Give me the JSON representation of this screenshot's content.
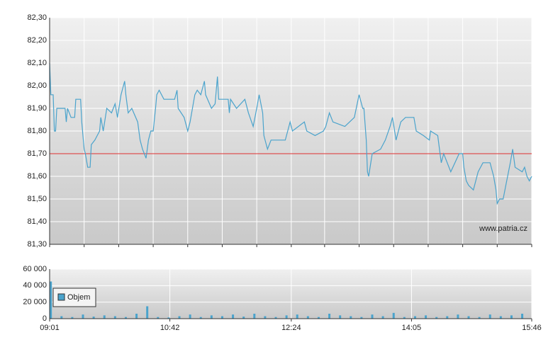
{
  "chart_data": [
    {
      "type": "line",
      "x": [
        541,
        542,
        544,
        545,
        546,
        547,
        554,
        555,
        556,
        559,
        562,
        563,
        567,
        568,
        570,
        571,
        573,
        575,
        576,
        579,
        583,
        584,
        586,
        589,
        593,
        596,
        598,
        601,
        604,
        605,
        607,
        610,
        615,
        617,
        619,
        622,
        624,
        626,
        628,
        630,
        631,
        633,
        637,
        642,
        646,
        648,
        649,
        654,
        657,
        659,
        663,
        665,
        668,
        671,
        672,
        677,
        680,
        682,
        683,
        691,
        692,
        693,
        698,
        705,
        708,
        712,
        715,
        717,
        720,
        721,
        724,
        727,
        739,
        741,
        743,
        745,
        755,
        757,
        764,
        771,
        773,
        776,
        779,
        789,
        797,
        801,
        804,
        805,
        807,
        808,
        809,
        812,
        819,
        823,
        827,
        829,
        832,
        836,
        840,
        847,
        849,
        855,
        860,
        861,
        867,
        869,
        870,
        872,
        878,
        885,
        888,
        889,
        891,
        893,
        897,
        901,
        905,
        911,
        914,
        916,
        917,
        919,
        922,
        925,
        928,
        930,
        932,
        938,
        940,
        942,
        944,
        946
      ],
      "values": [
        82.1,
        81.96,
        81.96,
        81.8,
        81.8,
        81.9,
        81.9,
        81.84,
        81.9,
        81.86,
        81.86,
        81.94,
        81.94,
        81.84,
        81.72,
        81.7,
        81.64,
        81.64,
        81.74,
        81.76,
        81.8,
        81.86,
        81.8,
        81.9,
        81.88,
        81.92,
        81.86,
        81.96,
        82.02,
        81.96,
        81.88,
        81.9,
        81.84,
        81.76,
        81.72,
        81.68,
        81.76,
        81.8,
        81.8,
        81.9,
        81.96,
        81.98,
        81.94,
        81.94,
        81.94,
        81.98,
        81.9,
        81.86,
        81.8,
        81.84,
        81.96,
        81.98,
        81.96,
        82.02,
        81.96,
        81.9,
        81.92,
        82.04,
        81.94,
        81.94,
        81.88,
        81.94,
        81.9,
        81.94,
        81.88,
        81.82,
        81.9,
        81.96,
        81.88,
        81.78,
        81.72,
        81.76,
        81.76,
        81.8,
        81.84,
        81.8,
        81.84,
        81.8,
        81.78,
        81.8,
        81.82,
        81.88,
        81.84,
        81.82,
        81.86,
        81.96,
        81.9,
        81.9,
        81.76,
        81.62,
        81.6,
        81.7,
        81.72,
        81.76,
        81.82,
        81.86,
        81.76,
        81.84,
        81.86,
        81.86,
        81.8,
        81.78,
        81.76,
        81.8,
        81.78,
        81.7,
        81.66,
        81.7,
        81.62,
        81.7,
        81.7,
        81.64,
        81.58,
        81.56,
        81.54,
        81.62,
        81.66,
        81.66,
        81.6,
        81.54,
        81.48,
        81.5,
        81.5,
        81.58,
        81.66,
        81.72,
        81.64,
        81.62,
        81.64,
        81.6,
        81.58,
        81.6
      ],
      "color": "#4aa3cc",
      "reference_line": {
        "value": 81.7,
        "color": "#e03030"
      },
      "annotation": "www.patria.cz",
      "xlim": [
        541,
        946
      ],
      "xticks": [
        541,
        570,
        599,
        628,
        657,
        686,
        715,
        744,
        772,
        801,
        830,
        859,
        888,
        917,
        946
      ],
      "ylim": [
        81.3,
        82.3
      ],
      "yticks": [
        {
          "value": 81.3,
          "label": "81,30"
        },
        {
          "value": 81.4,
          "label": "81,40"
        },
        {
          "value": 81.5,
          "label": "81,50"
        },
        {
          "value": 81.6,
          "label": "81,60"
        },
        {
          "value": 81.7,
          "label": "81,70"
        },
        {
          "value": 81.8,
          "label": "81,80"
        },
        {
          "value": 81.9,
          "label": "81,90"
        },
        {
          "value": 82.0,
          "label": "82,00"
        },
        {
          "value": 82.1,
          "label": "82,10"
        },
        {
          "value": 82.2,
          "label": "82,20"
        },
        {
          "value": 82.3,
          "label": "82,30"
        }
      ],
      "grid": true
    },
    {
      "type": "bar",
      "x": [
        542,
        551,
        560,
        569,
        578,
        587,
        596,
        605,
        614,
        623,
        632,
        641,
        650,
        659,
        668,
        677,
        686,
        695,
        704,
        713,
        722,
        731,
        740,
        749,
        758,
        767,
        776,
        785,
        794,
        803,
        812,
        821,
        830,
        839,
        848,
        857,
        866,
        875,
        884,
        893,
        902,
        911,
        920,
        929,
        938
      ],
      "series": [
        {
          "name": "Objem",
          "color": "#4aa3cc",
          "values": [
            45000,
            3000,
            2000,
            5000,
            2500,
            4000,
            3000,
            2000,
            6000,
            15000,
            2000,
            1500,
            3000,
            5000,
            2000,
            4000,
            3000,
            5000,
            2500,
            6000,
            3000,
            2000,
            4000,
            5000,
            3000,
            2000,
            6000,
            4000,
            3000,
            2000,
            5000,
            3000,
            7000,
            2000,
            3000,
            4000,
            2000,
            3000,
            5000,
            3000,
            2000,
            5000,
            3000,
            4000,
            6000
          ]
        }
      ],
      "legend": "upper left",
      "xlim": [
        541,
        946
      ],
      "xticks": [
        {
          "value": 541,
          "label": "09:01"
        },
        {
          "value": 642,
          "label": "10:42"
        },
        {
          "value": 744,
          "label": "12:24"
        },
        {
          "value": 845,
          "label": "14:05"
        },
        {
          "value": 946,
          "label": "15:46"
        }
      ],
      "ylim": [
        0,
        60000
      ],
      "yticks": [
        0,
        {
          "value": 20000,
          "label": "20 000"
        },
        {
          "value": 40000,
          "label": "40 000"
        },
        {
          "value": 60000,
          "label": "60 000"
        }
      ],
      "grid": true
    }
  ]
}
